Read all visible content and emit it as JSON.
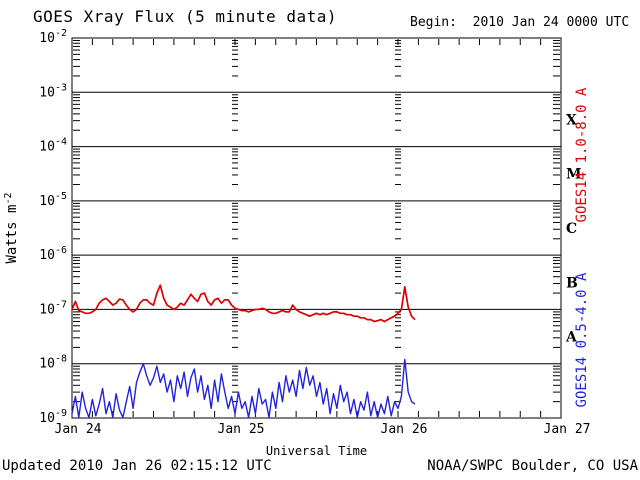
{
  "header": {
    "title": "GOES Xray Flux (5 minute data)",
    "begin": "Begin:  2010 Jan 24 0000 UTC"
  },
  "footer": {
    "updated": "Updated 2010 Jan 26 02:15:12 UTC",
    "source": "NOAA/SWPC Boulder, CO USA"
  },
  "chart_data": {
    "type": "line",
    "title": "GOES Xray Flux (5 minute data)",
    "begin_label": "Begin:  2010 Jan 24 0000 UTC",
    "x_axis": {
      "label": "Universal Time",
      "span_hours": 72,
      "minor_tick_hours": 3,
      "day_ticks": [
        {
          "hours": 0,
          "label": "Jan 24"
        },
        {
          "hours": 24,
          "label": "Jan 25"
        },
        {
          "hours": 48,
          "label": "Jan 26"
        },
        {
          "hours": 72,
          "label": "Jan 27"
        }
      ],
      "day_gridlines_hours": [
        24,
        48
      ]
    },
    "y_axis": {
      "scale": "log",
      "label_base": "Watts m",
      "label_exponent": "-2",
      "tick_base": "10",
      "log_decades": [
        -2,
        -3,
        -4,
        -5,
        -6,
        -7,
        -8,
        -9
      ]
    },
    "flare_classes": [
      {
        "letter": "X",
        "log_flux": -3.5
      },
      {
        "letter": "M",
        "log_flux": -4.5
      },
      {
        "letter": "C",
        "log_flux": -5.5
      },
      {
        "letter": "B",
        "log_flux": -6.5
      },
      {
        "letter": "A",
        "log_flux": -7.5
      }
    ],
    "grid": {
      "horizontal_decade_lines": true,
      "vertical_day_dash_columns": true
    },
    "axis_color": "#000000",
    "series": [
      {
        "name": "GOES14 1.0-8.0 A",
        "color": "#dd0000",
        "t_start_hours": 0,
        "t_step_hours": 0.5,
        "scale_wm2": 1e-07,
        "values": [
          1.0,
          1.4,
          0.95,
          0.9,
          0.85,
          0.85,
          0.9,
          1.0,
          1.3,
          1.5,
          1.6,
          1.4,
          1.2,
          1.3,
          1.55,
          1.5,
          1.2,
          1.0,
          0.9,
          1.0,
          1.3,
          1.5,
          1.5,
          1.3,
          1.2,
          2.0,
          2.8,
          1.6,
          1.2,
          1.1,
          1.0,
          1.1,
          1.3,
          1.2,
          1.5,
          1.9,
          1.6,
          1.4,
          1.9,
          2.0,
          1.4,
          1.2,
          1.5,
          1.6,
          1.3,
          1.5,
          1.5,
          1.2,
          1.05,
          1.0,
          0.95,
          0.95,
          0.9,
          0.95,
          1.0,
          1.0,
          1.05,
          1.0,
          0.9,
          0.85,
          0.85,
          0.9,
          0.95,
          0.9,
          0.9,
          1.2,
          1.0,
          0.9,
          0.85,
          0.8,
          0.75,
          0.8,
          0.85,
          0.8,
          0.85,
          0.8,
          0.85,
          0.9,
          0.9,
          0.85,
          0.85,
          0.8,
          0.8,
          0.75,
          0.75,
          0.7,
          0.7,
          0.65,
          0.65,
          0.6,
          0.62,
          0.65,
          0.6,
          0.65,
          0.7,
          0.75,
          0.85,
          1.0,
          2.6,
          1.1,
          0.75,
          0.65
        ]
      },
      {
        "name": "GOES14 0.5-4.0 A",
        "color": "#2222dd",
        "t_start_hours": 0,
        "t_step_hours": 0.5,
        "scale_wm2": 1e-09,
        "values": [
          1.2,
          2.5,
          1.0,
          3.0,
          1.5,
          1.0,
          2.2,
          1.1,
          1.8,
          3.5,
          1.2,
          2.0,
          1.0,
          2.8,
          1.4,
          1.0,
          2.0,
          3.8,
          1.5,
          4.5,
          7.0,
          10.0,
          6.0,
          4.0,
          5.5,
          9.0,
          4.5,
          6.5,
          3.0,
          5.0,
          2.0,
          6.0,
          3.5,
          7.0,
          2.5,
          5.5,
          8.0,
          3.0,
          6.0,
          2.2,
          4.0,
          1.5,
          5.0,
          2.0,
          6.5,
          3.0,
          1.5,
          2.5,
          1.2,
          3.0,
          1.5,
          2.0,
          1.0,
          2.5,
          1.2,
          3.5,
          1.8,
          2.2,
          1.0,
          3.0,
          1.5,
          4.5,
          2.0,
          6.0,
          3.0,
          5.0,
          2.5,
          7.5,
          3.5,
          8.5,
          4.0,
          6.0,
          2.5,
          4.5,
          1.8,
          3.5,
          1.2,
          2.8,
          1.5,
          4.0,
          2.0,
          3.0,
          1.2,
          2.2,
          1.0,
          2.0,
          1.4,
          3.0,
          1.1,
          2.0,
          1.0,
          1.8,
          1.2,
          2.5,
          1.1,
          2.0,
          1.5,
          2.5,
          12.0,
          3.0,
          2.0,
          1.8
        ]
      }
    ],
    "footer": {
      "updated": "Updated 2010 Jan 26 02:15:12 UTC",
      "source": "NOAA/SWPC Boulder, CO USA"
    }
  }
}
